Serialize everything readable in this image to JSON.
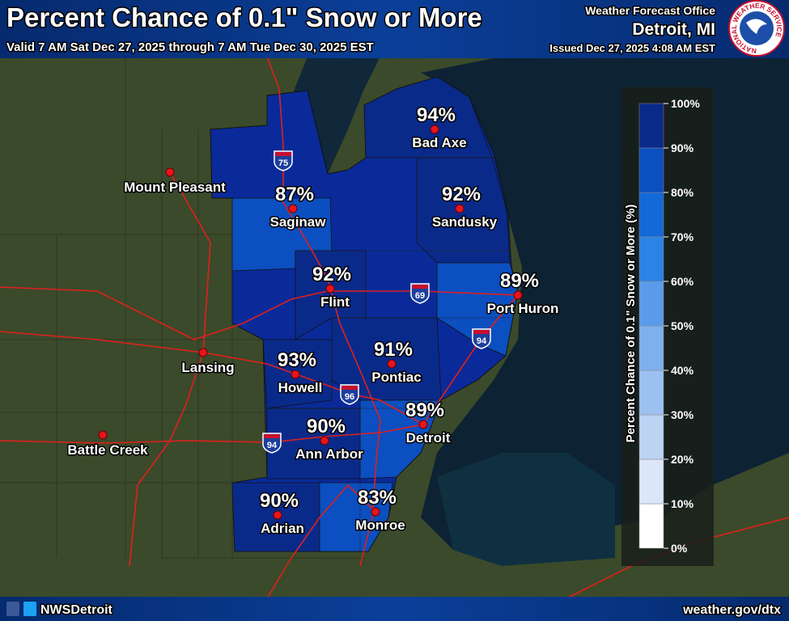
{
  "header": {
    "title": "Percent Chance of 0.1\" Snow or More",
    "subtitle": "Valid 7 AM Sat Dec 27, 2025 through 7 AM Tue Dec 30, 2025 EST",
    "office_label": "Weather Forecast Office",
    "office": "Detroit, MI",
    "issued": "Issued Dec 27, 2025 4:08 AM EST",
    "logo_text": "NATIONAL WEATHER SERVICE"
  },
  "cities": [
    {
      "name": "Bad Axe",
      "chance": {
        "value": 94,
        "label": "94%"
      }
    },
    {
      "name": "Saginaw",
      "chance": {
        "value": 87,
        "label": "87%"
      }
    },
    {
      "name": "Sandusky",
      "chance": {
        "value": 92,
        "label": "92%"
      }
    },
    {
      "name": "Flint",
      "chance": {
        "value": 92,
        "label": "92%"
      }
    },
    {
      "name": "Port Huron",
      "chance": {
        "value": 89,
        "label": "89%"
      }
    },
    {
      "name": "Howell",
      "chance": {
        "value": 93,
        "label": "93%"
      }
    },
    {
      "name": "Pontiac",
      "chance": {
        "value": 91,
        "label": "91%"
      }
    },
    {
      "name": "Detroit",
      "chance": {
        "value": 89,
        "label": "89%"
      }
    },
    {
      "name": "Ann Arbor",
      "chance": {
        "value": 90,
        "label": "90%"
      }
    },
    {
      "name": "Adrian",
      "chance": {
        "value": 90,
        "label": "90%"
      }
    },
    {
      "name": "Monroe",
      "chance": {
        "value": 83,
        "label": "83%"
      }
    }
  ],
  "other_cities": [
    "Mount Pleasant",
    "Lansing",
    "Battle Creek"
  ],
  "highways": [
    "75",
    "69",
    "94",
    "96",
    "94"
  ],
  "legend": {
    "title": "Percent Chance of 0.1\" Snow or More (%)",
    "ticks": [
      {
        "value": 0,
        "label": "0%"
      },
      {
        "value": 10,
        "label": "10%"
      },
      {
        "value": 20,
        "label": "20%"
      },
      {
        "value": 30,
        "label": "30%"
      },
      {
        "value": 40,
        "label": "40%"
      },
      {
        "value": 50,
        "label": "50%"
      },
      {
        "value": 60,
        "label": "60%"
      },
      {
        "value": 70,
        "label": "70%"
      },
      {
        "value": 80,
        "label": "80%"
      },
      {
        "value": 90,
        "label": "90%"
      },
      {
        "value": 100,
        "label": "100%"
      }
    ],
    "colors": [
      "#ffffff",
      "#dbe6f8",
      "#bcd3f4",
      "#9cc0f0",
      "#7fb0ee",
      "#5a9ceb",
      "#2b83e6",
      "#1469d8",
      "#0b4fc0",
      "#0a2a8a"
    ]
  },
  "footer": {
    "social": "NWSDetroit",
    "url": "weather.gov/dtx"
  }
}
